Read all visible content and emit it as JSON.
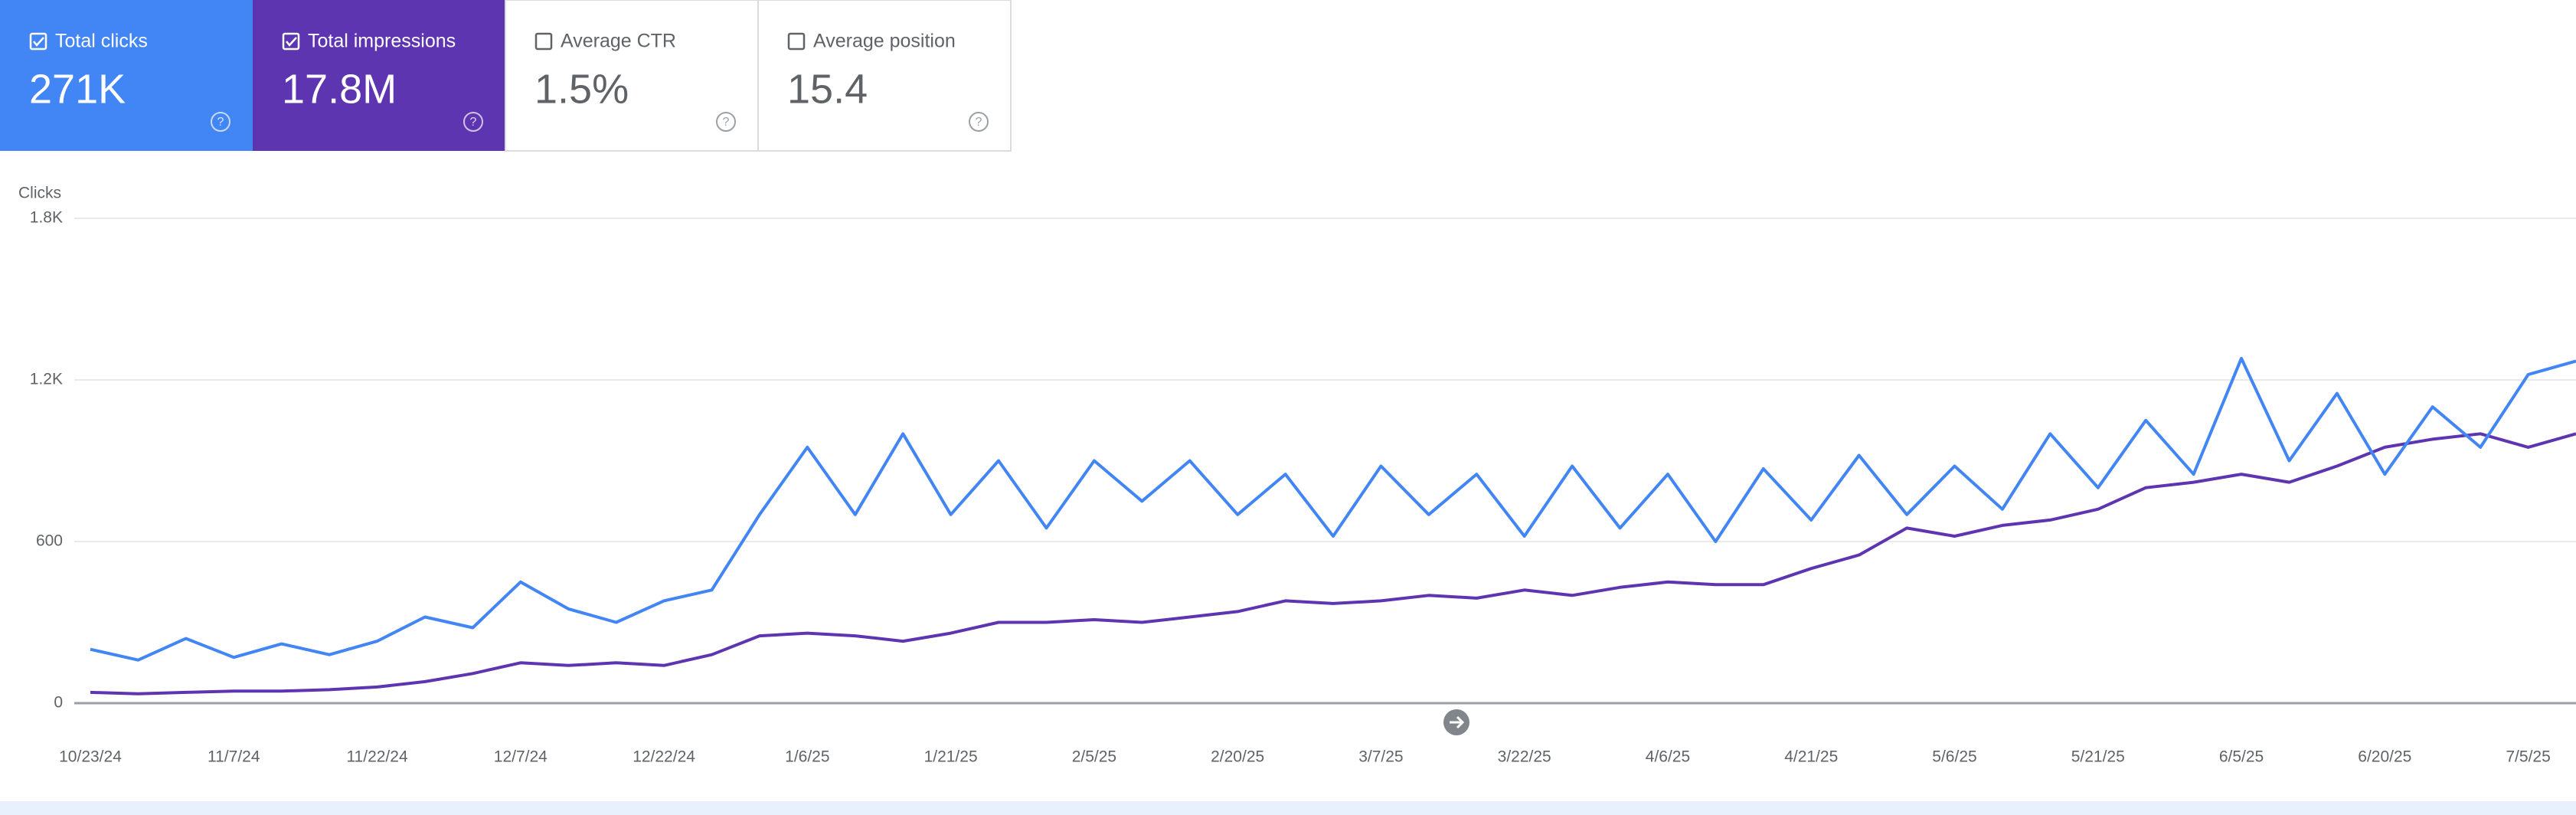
{
  "metrics": [
    {
      "label": "Total clicks",
      "value": "271K",
      "checked": true,
      "color": "#4285f4"
    },
    {
      "label": "Total impressions",
      "value": "17.8M",
      "checked": true,
      "color": "#5e35b1"
    },
    {
      "label": "Average CTR",
      "value": "1.5%",
      "checked": false
    },
    {
      "label": "Average position",
      "value": "15.4",
      "checked": false
    }
  ],
  "chart_data": {
    "type": "line",
    "y_label": "Clicks",
    "x": [
      "2024-10-23",
      "2024-10-28",
      "2024-11-02",
      "2024-11-07",
      "2024-11-12",
      "2024-11-17",
      "2024-11-22",
      "2024-11-27",
      "2024-12-02",
      "2024-12-07",
      "2024-12-12",
      "2024-12-17",
      "2024-12-22",
      "2024-12-27",
      "2025-01-01",
      "2025-01-06",
      "2025-01-11",
      "2025-01-16",
      "2025-01-21",
      "2025-01-26",
      "2025-01-31",
      "2025-02-05",
      "2025-02-10",
      "2025-02-15",
      "2025-02-20",
      "2025-02-25",
      "2025-03-02",
      "2025-03-07",
      "2025-03-12",
      "2025-03-17",
      "2025-03-22",
      "2025-03-27",
      "2025-04-01",
      "2025-04-06",
      "2025-04-11",
      "2025-04-16",
      "2025-04-21",
      "2025-04-26",
      "2025-05-01",
      "2025-05-06",
      "2025-05-11",
      "2025-05-16",
      "2025-05-21",
      "2025-05-26",
      "2025-05-31",
      "2025-06-05",
      "2025-06-10",
      "2025-06-15",
      "2025-06-20",
      "2025-06-25",
      "2025-06-30",
      "2025-07-05",
      "2025-07-10"
    ],
    "series": [
      {
        "color": "#4285f4",
        "values": [
          200,
          160,
          240,
          170,
          220,
          180,
          230,
          320,
          280,
          450,
          350,
          300,
          380,
          420,
          700,
          950,
          700,
          1000,
          700,
          900,
          650,
          900,
          750,
          900,
          700,
          850,
          620,
          880,
          700,
          850,
          620,
          880,
          650,
          850,
          600,
          870,
          680,
          920,
          700,
          880,
          720,
          1000,
          800,
          1050,
          850,
          1280,
          900,
          1150,
          850,
          1100,
          950,
          1220,
          1270
        ]
      },
      {
        "color": "#5e35b1",
        "axis": "y2",
        "values": [
          6000,
          5250,
          6000,
          6750,
          6750,
          7500,
          9000,
          12000,
          16500,
          22500,
          21000,
          22500,
          21000,
          27000,
          37500,
          39000,
          37500,
          34500,
          39000,
          45000,
          45000,
          46500,
          45000,
          48000,
          51000,
          57000,
          55500,
          57000,
          60000,
          58500,
          63000,
          60000,
          64500,
          67500,
          66000,
          66000,
          75000,
          82500,
          97500,
          93000,
          99000,
          102000,
          108000,
          120000,
          123000,
          127500,
          123000,
          132000,
          142500,
          147000,
          150000,
          142500,
          150000
        ]
      }
    ],
    "xlim": [
      "2024-10-23",
      "2025-07-10"
    ],
    "xticks": [
      {
        "value": "2024-10-23",
        "label": "10/23/24"
      },
      {
        "value": "2024-11-07",
        "label": "11/7/24"
      },
      {
        "value": "2024-11-22",
        "label": "11/22/24"
      },
      {
        "value": "2024-12-07",
        "label": "12/7/24"
      },
      {
        "value": "2024-12-22",
        "label": "12/22/24"
      },
      {
        "value": "2025-01-06",
        "label": "1/6/25"
      },
      {
        "value": "2025-01-21",
        "label": "1/21/25"
      },
      {
        "value": "2025-02-05",
        "label": "2/5/25"
      },
      {
        "value": "2025-02-20",
        "label": "2/20/25"
      },
      {
        "value": "2025-03-07",
        "label": "3/7/25"
      },
      {
        "value": "2025-03-22",
        "label": "3/22/25"
      },
      {
        "value": "2025-04-06",
        "label": "4/6/25"
      },
      {
        "value": "2025-04-21",
        "label": "4/21/25"
      },
      {
        "value": "2025-05-06",
        "label": "5/6/25"
      },
      {
        "value": "2025-05-21",
        "label": "5/21/25"
      },
      {
        "value": "2025-06-05",
        "label": "6/5/25"
      },
      {
        "value": "2025-06-20",
        "label": "6/20/25"
      },
      {
        "value": "2025-07-05",
        "label": "7/5/25"
      }
    ],
    "ylim": [
      0,
      1800
    ],
    "yticks": [
      0,
      600,
      {
        "value": 1200,
        "label": "1.2K"
      },
      {
        "value": 1800,
        "label": "1.8K"
      }
    ],
    "y2lim": [
      0,
      270000
    ],
    "grid": true
  }
}
